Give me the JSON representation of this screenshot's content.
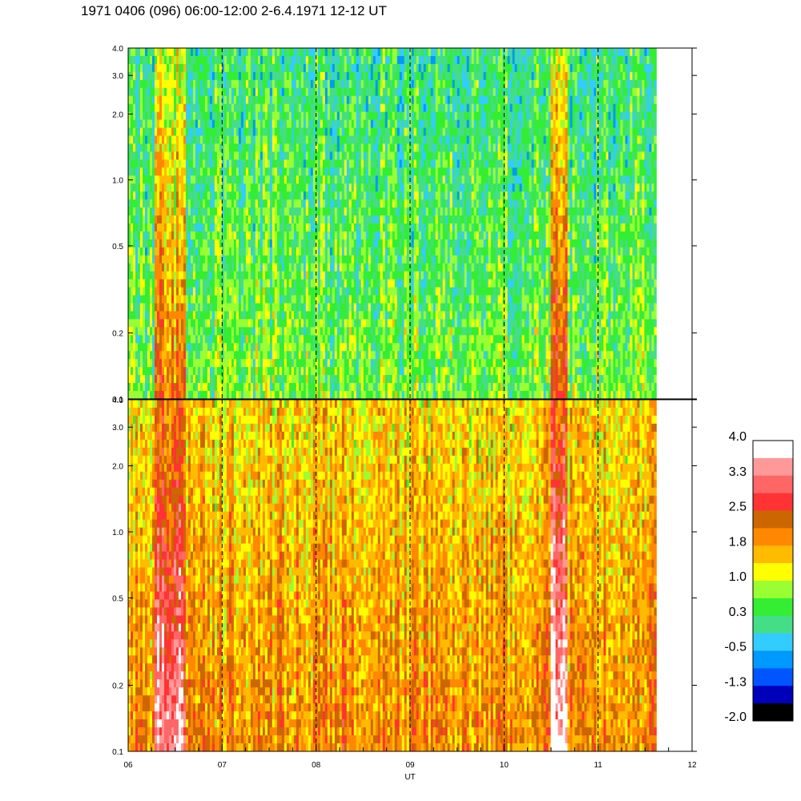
{
  "title": "1971 0406 (096) 06:00-12:00 2-6.4.1971 12-12 UT",
  "chart_data": {
    "type": "heatmap",
    "title": "1971 0406 (096) 06:00-12:00 2-6.4.1971 12-12 UT",
    "xlabel": "UT",
    "x_range": [
      6,
      12
    ],
    "data_end": 11.62,
    "x_ticks": [
      "06",
      "07",
      "08",
      "09",
      "10",
      "11",
      "12"
    ],
    "x_tick_values": [
      6,
      7,
      8,
      9,
      10,
      11,
      12
    ],
    "dashed_lines": [
      7,
      8,
      9,
      10,
      11
    ],
    "y_scale": "log",
    "y_range": [
      0.1,
      4.0
    ],
    "y_ticks": [
      "0.1",
      "0.2",
      "0.5",
      "1.0",
      "2.0",
      "3.0",
      "4.0"
    ],
    "y_tick_values": [
      0.1,
      0.2,
      0.5,
      1.0,
      2.0,
      3.0,
      4.0
    ],
    "panels": [
      {
        "name": "top",
        "base_level": 0.4
      },
      {
        "name": "bottom",
        "base_level": 1.6
      }
    ],
    "features": [
      {
        "x_start": 6.28,
        "x_end": 6.62,
        "level_boost": 1.2
      },
      {
        "x_start": 10.5,
        "x_end": 10.68,
        "level_boost": 1.6
      }
    ],
    "colorbar": {
      "labels": [
        "4.0",
        "3.3",
        "2.5",
        "1.8",
        "1.0",
        "0.3",
        "-0.5",
        "-1.3",
        "-2.0"
      ],
      "values": [
        4.0,
        3.3,
        2.5,
        1.8,
        1.0,
        0.3,
        -0.5,
        -1.3,
        -2.0
      ],
      "colors": [
        "#ffffff",
        "#ff9999",
        "#ff6666",
        "#ff3333",
        "#cc6600",
        "#ff8800",
        "#ffbb00",
        "#ffff00",
        "#99ff33",
        "#33ee33",
        "#44dd88",
        "#33ccff",
        "#0099ff",
        "#0055ff",
        "#0000bb",
        "#000000"
      ]
    }
  }
}
